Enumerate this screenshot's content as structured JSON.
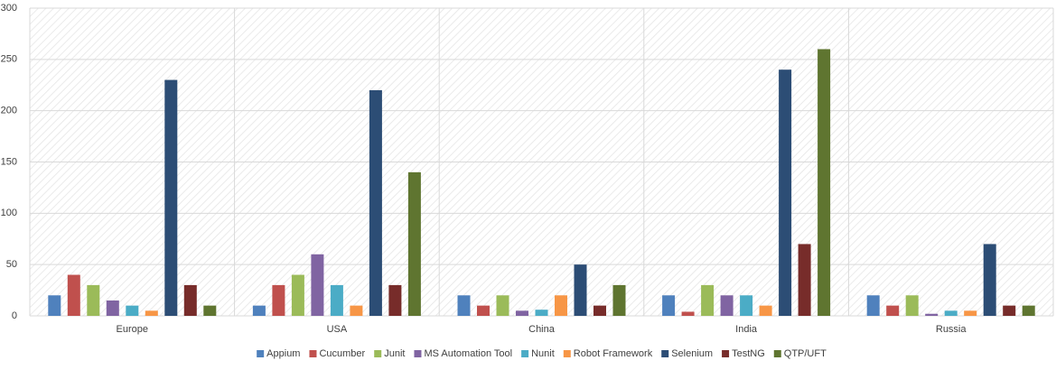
{
  "chart_data": {
    "type": "bar",
    "categories": [
      "Europe",
      "USA",
      "China",
      "India",
      "Russia"
    ],
    "series": [
      {
        "name": "Appium",
        "color": "#4f81bd",
        "values": [
          20,
          10,
          20,
          20,
          20
        ]
      },
      {
        "name": "Cucumber",
        "color": "#c0504d",
        "values": [
          40,
          30,
          10,
          4,
          10
        ]
      },
      {
        "name": "Junit",
        "color": "#9bbb59",
        "values": [
          30,
          40,
          20,
          30,
          20
        ]
      },
      {
        "name": "MS Automation Tool",
        "color": "#8064a2",
        "values": [
          15,
          60,
          5,
          20,
          2
        ]
      },
      {
        "name": "Nunit",
        "color": "#4bacc6",
        "values": [
          10,
          30,
          6,
          20,
          5
        ]
      },
      {
        "name": "Robot Framework",
        "color": "#f79646",
        "values": [
          5,
          10,
          20,
          10,
          5
        ]
      },
      {
        "name": "Selenium",
        "color": "#2c4d75",
        "values": [
          230,
          220,
          50,
          240,
          70
        ]
      },
      {
        "name": "TestNG",
        "color": "#772c2a",
        "values": [
          30,
          30,
          10,
          70,
          10
        ]
      },
      {
        "name": "QTP/UFT",
        "color": "#5f7530",
        "values": [
          10,
          140,
          30,
          260,
          10
        ]
      }
    ],
    "ylim": [
      0,
      300
    ],
    "yticks": [
      0,
      50,
      100,
      150,
      200,
      250,
      300
    ],
    "grid": true,
    "legend": "bottom"
  }
}
